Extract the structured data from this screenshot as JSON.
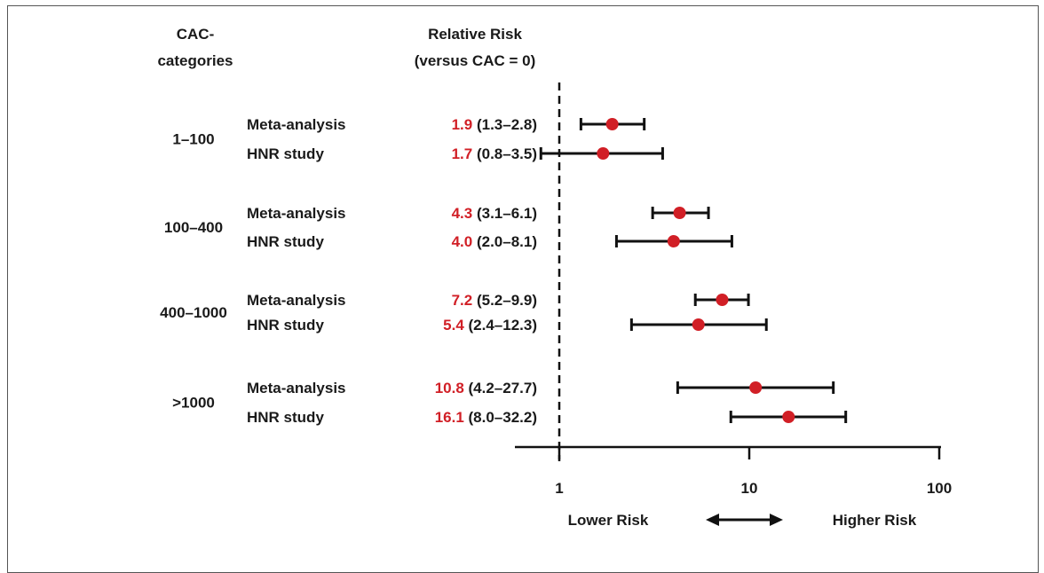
{
  "chart_data": {
    "type": "forest",
    "x_scale": "log",
    "xlim": [
      0.6,
      100
    ],
    "xticks": [
      1,
      10,
      100
    ],
    "xtick_labels": [
      "1",
      "10",
      "100"
    ],
    "reference_line": 1,
    "headers": {
      "categories_line1": "CAC-",
      "categories_line2": "categories",
      "rr_line1": "Relative Risk",
      "rr_line2": "(versus CAC = 0)"
    },
    "axis_labels": {
      "left": "Lower Risk",
      "right": "Higher Risk"
    },
    "colors": {
      "point": "#d11f26",
      "estimate_text": "#d11f26",
      "line": "#111111"
    },
    "groups": [
      {
        "category": "1–100",
        "rows": [
          {
            "label": "Meta-analysis",
            "rr": 1.9,
            "rr_text": "1.9",
            "ci": [
              1.3,
              2.8
            ],
            "ci_text": "(1.3–2.8)"
          },
          {
            "label": "HNR study",
            "rr": 1.7,
            "rr_text": "1.7",
            "ci": [
              0.8,
              3.5
            ],
            "ci_text": "(0.8–3.5)"
          }
        ]
      },
      {
        "category": "100–400",
        "rows": [
          {
            "label": "Meta-analysis",
            "rr": 4.3,
            "rr_text": "4.3",
            "ci": [
              3.1,
              6.1
            ],
            "ci_text": "(3.1–6.1)"
          },
          {
            "label": "HNR study",
            "rr": 4.0,
            "rr_text": "4.0",
            "ci": [
              2.0,
              8.1
            ],
            "ci_text": "(2.0–8.1)"
          }
        ]
      },
      {
        "category": "400–1000",
        "rows": [
          {
            "label": "Meta-analysis",
            "rr": 7.2,
            "rr_text": "7.2",
            "ci": [
              5.2,
              9.9
            ],
            "ci_text": "(5.2–9.9)"
          },
          {
            "label": "HNR study",
            "rr": 5.4,
            "rr_text": "5.4",
            "ci": [
              2.4,
              12.3
            ],
            "ci_text": "(2.4–12.3)"
          }
        ]
      },
      {
        "category": ">1000",
        "rows": [
          {
            "label": "Meta-analysis",
            "rr": 10.8,
            "rr_text": "10.8",
            "ci": [
              4.2,
              27.7
            ],
            "ci_text": "(4.2–27.7)"
          },
          {
            "label": "HNR study",
            "rr": 16.1,
            "rr_text": "16.1",
            "ci": [
              8.0,
              32.2
            ],
            "ci_text": "(8.0–32.2)"
          }
        ]
      }
    ]
  }
}
